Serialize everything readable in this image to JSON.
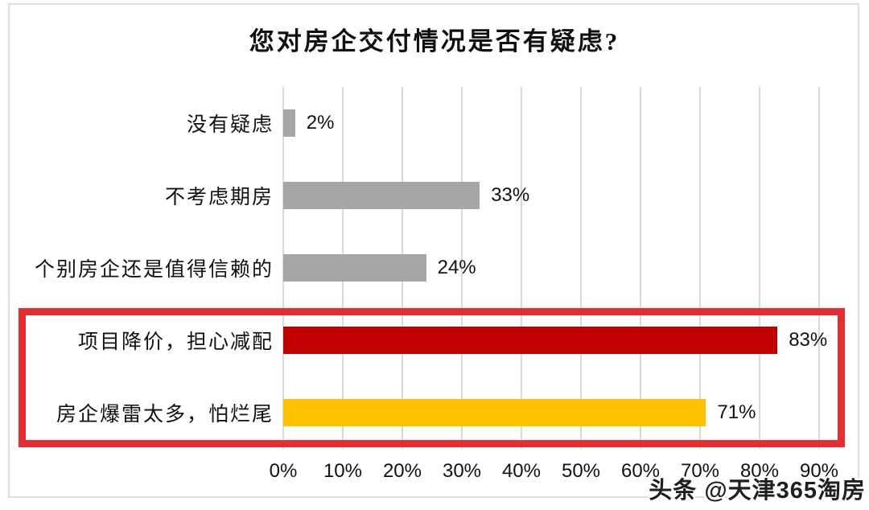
{
  "title": "您对房企交付情况是否有疑虑?",
  "watermark": "头条 @天津365淘房",
  "colors": {
    "bar_gray": "#a6a6a6",
    "bar_red": "#c00000",
    "bar_gold": "#ffc000",
    "highlight_box": "#e82d32",
    "gridline": "#d9d9d9",
    "frame": "#dedede",
    "text": "#111111"
  },
  "chart_data": {
    "type": "bar",
    "orientation": "horizontal",
    "title": "您对房企交付情况是否有疑虑?",
    "categories": [
      "没有疑虑",
      "不考虑期房",
      "个别房企还是值得信赖的",
      "项目降价，担心减配",
      "房企爆雷太多，怕烂尾"
    ],
    "values": [
      2,
      33,
      24,
      83,
      71
    ],
    "display_values": [
      "2%",
      "33%",
      "24%",
      "83%",
      "71%"
    ],
    "bar_colors": [
      "#a6a6a6",
      "#a6a6a6",
      "#a6a6a6",
      "#c00000",
      "#ffc000"
    ],
    "x_ticks": [
      "0%",
      "10%",
      "20%",
      "30%",
      "40%",
      "50%",
      "60%",
      "70%",
      "80%",
      "90%"
    ],
    "xlim": [
      0,
      90
    ],
    "grid": true,
    "legend": false,
    "highlighted_categories": [
      "项目降价，担心减配",
      "房企爆雷太多，怕烂尾"
    ],
    "annotation": "red box drawn around the two highlighted bottom rows"
  }
}
